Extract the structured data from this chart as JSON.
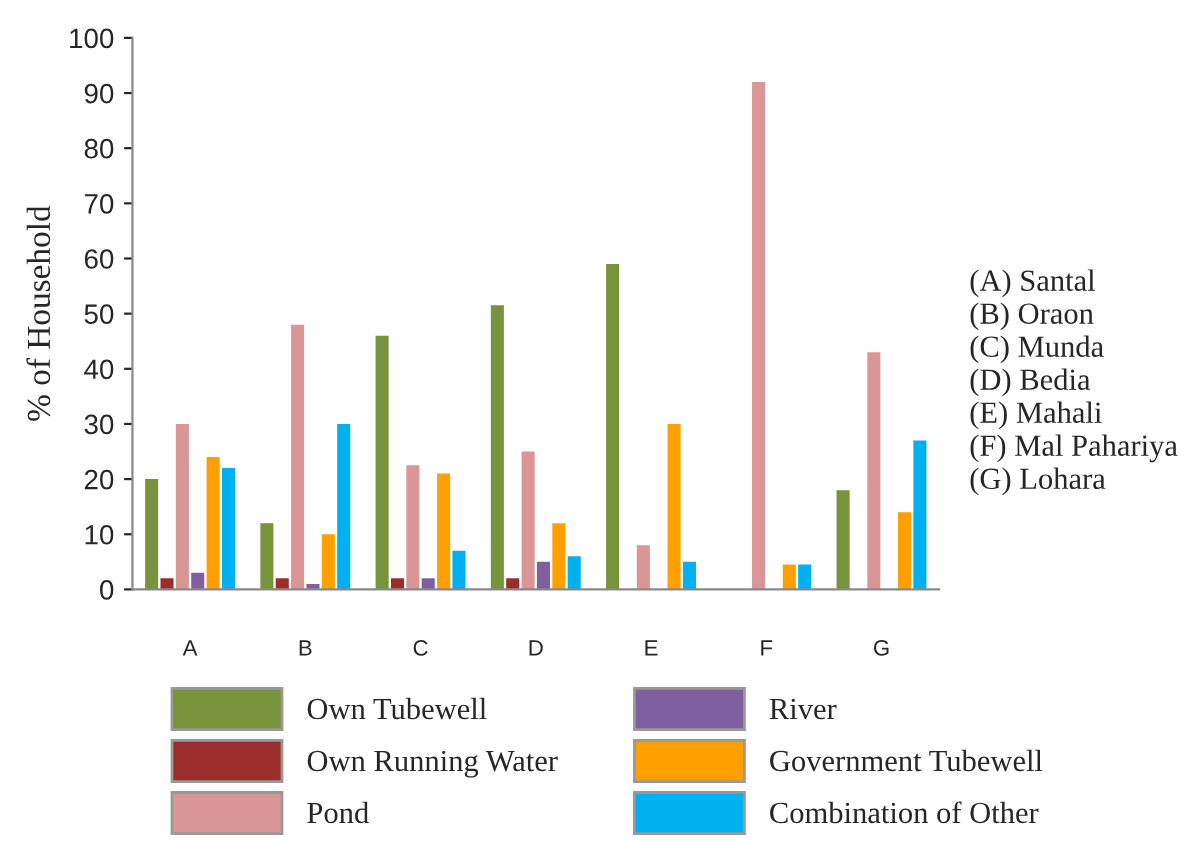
{
  "chart_data": {
    "type": "bar",
    "ylabel": "% of Household",
    "categories": [
      "A",
      "B",
      "C",
      "D",
      "E",
      "F",
      "G"
    ],
    "series": [
      {
        "name": "Own Tubewell",
        "color": "#77933c",
        "values": [
          20,
          12,
          46,
          51.5,
          59,
          0,
          18
        ]
      },
      {
        "name": "Own Running Water",
        "color": "#9b2d2d",
        "values": [
          2,
          2,
          2,
          2,
          0,
          0,
          0
        ]
      },
      {
        "name": "Pond",
        "color": "#d99694",
        "values": [
          30,
          48,
          22.5,
          25,
          8,
          92,
          43
        ]
      },
      {
        "name": "River",
        "color": "#7f5fa0",
        "values": [
          3,
          1,
          2,
          5,
          0,
          0,
          0
        ]
      },
      {
        "name": "Government Tubewell",
        "color": "#ff9f00",
        "values": [
          24,
          10,
          21,
          12,
          30,
          4.5,
          14
        ]
      },
      {
        "name": "Combination of Other",
        "color": "#00b0f0",
        "values": [
          22,
          30,
          7,
          6,
          5,
          4.5,
          27
        ]
      }
    ],
    "ylim": [
      0,
      100
    ],
    "yticks": [
      0,
      10,
      20,
      30,
      40,
      50,
      60,
      70,
      80,
      90,
      100
    ],
    "legend": "bottom",
    "grid": false,
    "annotations": [
      "(A) Santal\n(B) Oraon\n(C) Munda\n(D) Bedia\n(E) Mahali\n(F) Mal Pahariya\n(G) Lohara"
    ]
  }
}
